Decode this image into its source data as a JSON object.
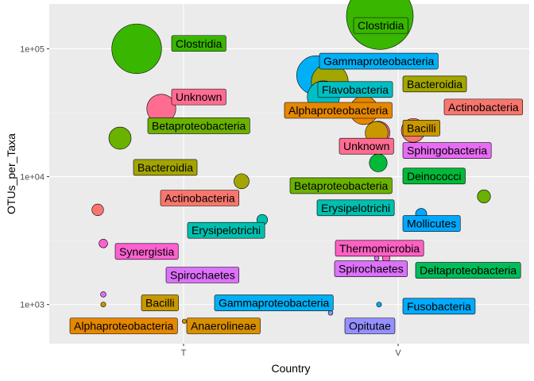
{
  "chart_data": {
    "type": "scatter",
    "xlabel": "Country",
    "ylabel": "OTUs_per_Taxa",
    "y_scale": "log10",
    "x_categories": [
      "T",
      "V"
    ],
    "y_ticks": [
      {
        "value": 1000,
        "label": "1e+03"
      },
      {
        "value": 10000,
        "label": "1e+04"
      },
      {
        "value": 100000,
        "label": "1e+05"
      }
    ],
    "grid": true,
    "legend": "none",
    "colors": {
      "Clostridia": "#39B600",
      "Gammaproteobacteria": "#00B0F6",
      "Flavobacteria": "#00BFC4",
      "Bacteroidia": "#A3A500",
      "Actinobacteria": "#F8766D",
      "Alphaproteobacteria": "#E58700",
      "Bacilli": "#C99800",
      "Unknown": "#FF6C91",
      "Sphingobacteria": "#E76BF3",
      "Betaproteobacteria": "#6BB100",
      "Deinococci": "#00BA38",
      "Erysipelotrichi": "#00C0AF",
      "Mollicutes": "#00A8FF",
      "Thermomicrobia": "#FF61C3",
      "Spirochaetes": "#DC71FA",
      "Deltaproteobacteria": "#00BC59",
      "Fusobacteria": "#00ABFD",
      "Opitutae": "#9590FF",
      "Synergistia": "#FD61D1",
      "Anaerolineae": "#D89000"
    },
    "points": [
      {
        "taxon": "Clostridia",
        "country": "T",
        "y": 100000,
        "size": 100000
      },
      {
        "taxon": "Unknown",
        "country": "T",
        "y": 34000,
        "size": 34000
      },
      {
        "taxon": "Betaproteobacteria",
        "country": "T",
        "y": 20000,
        "size": 20000
      },
      {
        "taxon": "Bacteroidia",
        "country": "T",
        "y": 9200,
        "size": 9200
      },
      {
        "taxon": "Actinobacteria",
        "country": "T",
        "y": 5500,
        "size": 5500
      },
      {
        "taxon": "Erysipelotrichi",
        "country": "T",
        "y": 4600,
        "size": 4600
      },
      {
        "taxon": "Synergistia",
        "country": "T",
        "y": 3000,
        "size": 3000
      },
      {
        "taxon": "Spirochaetes",
        "country": "T",
        "y": 1200,
        "size": 1200
      },
      {
        "taxon": "Bacilli",
        "country": "T",
        "y": 1000,
        "size": 1000
      },
      {
        "taxon": "Gammaproteobacteria",
        "country": "T",
        "y": 980,
        "size": 980
      },
      {
        "taxon": "Alphaproteobacteria",
        "country": "T",
        "y": 750,
        "size": 750
      },
      {
        "taxon": "Anaerolineae",
        "country": "T",
        "y": 740,
        "size": 740
      },
      {
        "taxon": "Clostridia",
        "country": "V",
        "y": 180000,
        "size": 180000
      },
      {
        "taxon": "Gammaproteobacteria",
        "country": "V",
        "y": 62000,
        "size": 62000
      },
      {
        "taxon": "Bacteroidia",
        "country": "V",
        "y": 55000,
        "size": 55000
      },
      {
        "taxon": "Flavobacteria",
        "country": "V",
        "y": 42000,
        "size": 42000
      },
      {
        "taxon": "Alphaproteobacteria",
        "country": "V",
        "y": 33000,
        "size": 33000
      },
      {
        "taxon": "Actinobacteria",
        "country": "V",
        "y": 23000,
        "size": 23000
      },
      {
        "taxon": "Unknown",
        "country": "V",
        "y": 22000,
        "size": 22000
      },
      {
        "taxon": "Bacilli",
        "country": "V",
        "y": 22000,
        "size": 21000
      },
      {
        "taxon": "Deinococci",
        "country": "V",
        "y": 12800,
        "size": 12800
      },
      {
        "taxon": "Sphingobacteria",
        "country": "V",
        "y": 16000,
        "size": 800
      },
      {
        "taxon": "Mollicutes",
        "country": "V",
        "y": 5100,
        "size": 5100
      },
      {
        "taxon": "Betaproteobacteria",
        "country": "V",
        "y": 7000,
        "size": 7000
      },
      {
        "taxon": "Erysipelotrichi",
        "country": "V",
        "y": 5700,
        "size": 5700
      },
      {
        "taxon": "Thermomicrobia",
        "country": "V",
        "y": 2300,
        "size": 2300
      },
      {
        "taxon": "Deltaproteobacteria",
        "country": "V",
        "y": 2000,
        "size": 2000
      },
      {
        "taxon": "Spirochaetes",
        "country": "V",
        "y": 2300,
        "size": 900
      },
      {
        "taxon": "Fusobacteria",
        "country": "V",
        "y": 1000,
        "size": 1000
      },
      {
        "taxon": "Opitutae",
        "country": "V",
        "y": 860,
        "size": 860
      }
    ],
    "labels": [
      {
        "text": "Clostridia",
        "taxon": "Clostridia",
        "country": "T",
        "y": 110000
      },
      {
        "text": "Unknown",
        "taxon": "Unknown",
        "country": "T",
        "y": 42000
      },
      {
        "text": "Betaproteobacteria",
        "taxon": "Betaproteobacteria",
        "country": "T",
        "y": 25000
      },
      {
        "text": "Bacteroidia",
        "taxon": "Bacteroidia",
        "country": "T",
        "y": 11800
      },
      {
        "text": "Actinobacteria",
        "taxon": "Actinobacteria",
        "country": "T",
        "y": 6800
      },
      {
        "text": "Erysipelotrichi",
        "taxon": "Erysipelotrichi",
        "country": "T",
        "y": 3800
      },
      {
        "text": "Synergistia",
        "taxon": "Synergistia",
        "country": "T",
        "y": 2600
      },
      {
        "text": "Spirochaetes",
        "taxon": "Spirochaetes",
        "country": "T",
        "y": 1700
      },
      {
        "text": "Bacilli",
        "taxon": "Bacilli",
        "country": "T",
        "y": 1030
      },
      {
        "text": "Gammaproteobacteria",
        "taxon": "Gammaproteobacteria",
        "country": "T",
        "y": 1030
      },
      {
        "text": "Alphaproteobacteria",
        "taxon": "Alphaproteobacteria",
        "country": "T",
        "y": 680
      },
      {
        "text": "Anaerolineae",
        "taxon": "Anaerolineae",
        "country": "T",
        "y": 680
      },
      {
        "text": "Clostridia",
        "taxon": "Clostridia",
        "country": "V",
        "y": 152000
      },
      {
        "text": "Gammaproteobacteria",
        "taxon": "Gammaproteobacteria",
        "country": "V",
        "y": 80000
      },
      {
        "text": "Bacteroidia",
        "taxon": "Bacteroidia",
        "country": "V",
        "y": 53000
      },
      {
        "text": "Flavobacteria",
        "taxon": "Flavobacteria",
        "country": "V",
        "y": 48000
      },
      {
        "text": "Actinobacteria",
        "taxon": "Actinobacteria",
        "country": "V",
        "y": 35000
      },
      {
        "text": "Alphaproteobacteria",
        "taxon": "Alphaproteobacteria",
        "country": "V",
        "y": 33000
      },
      {
        "text": "Bacilli",
        "taxon": "Bacilli",
        "country": "V",
        "y": 24000
      },
      {
        "text": "Unknown",
        "taxon": "Unknown",
        "country": "V",
        "y": 17300
      },
      {
        "text": "Sphingobacteria",
        "taxon": "Sphingobacteria",
        "country": "V",
        "y": 16000
      },
      {
        "text": "Deinococci",
        "taxon": "Deinococci",
        "country": "V",
        "y": 10100
      },
      {
        "text": "Betaproteobacteria",
        "taxon": "Betaproteobacteria",
        "country": "V",
        "y": 8500
      },
      {
        "text": "Erysipelotrichi",
        "taxon": "Erysipelotrichi",
        "country": "V",
        "y": 5700
      },
      {
        "text": "Mollicutes",
        "taxon": "Mollicutes",
        "country": "V",
        "y": 4300
      },
      {
        "text": "Thermomicrobia",
        "taxon": "Thermomicrobia",
        "country": "V",
        "y": 2750
      },
      {
        "text": "Spirochaetes",
        "taxon": "Spirochaetes",
        "country": "V",
        "y": 1900
      },
      {
        "text": "Deltaproteobacteria",
        "taxon": "Deltaproteobacteria",
        "country": "V",
        "y": 1850
      },
      {
        "text": "Fusobacteria",
        "taxon": "Fusobacteria",
        "country": "V",
        "y": 970
      },
      {
        "text": "Opitutae",
        "taxon": "Opitutae",
        "country": "V",
        "y": 680
      }
    ]
  }
}
